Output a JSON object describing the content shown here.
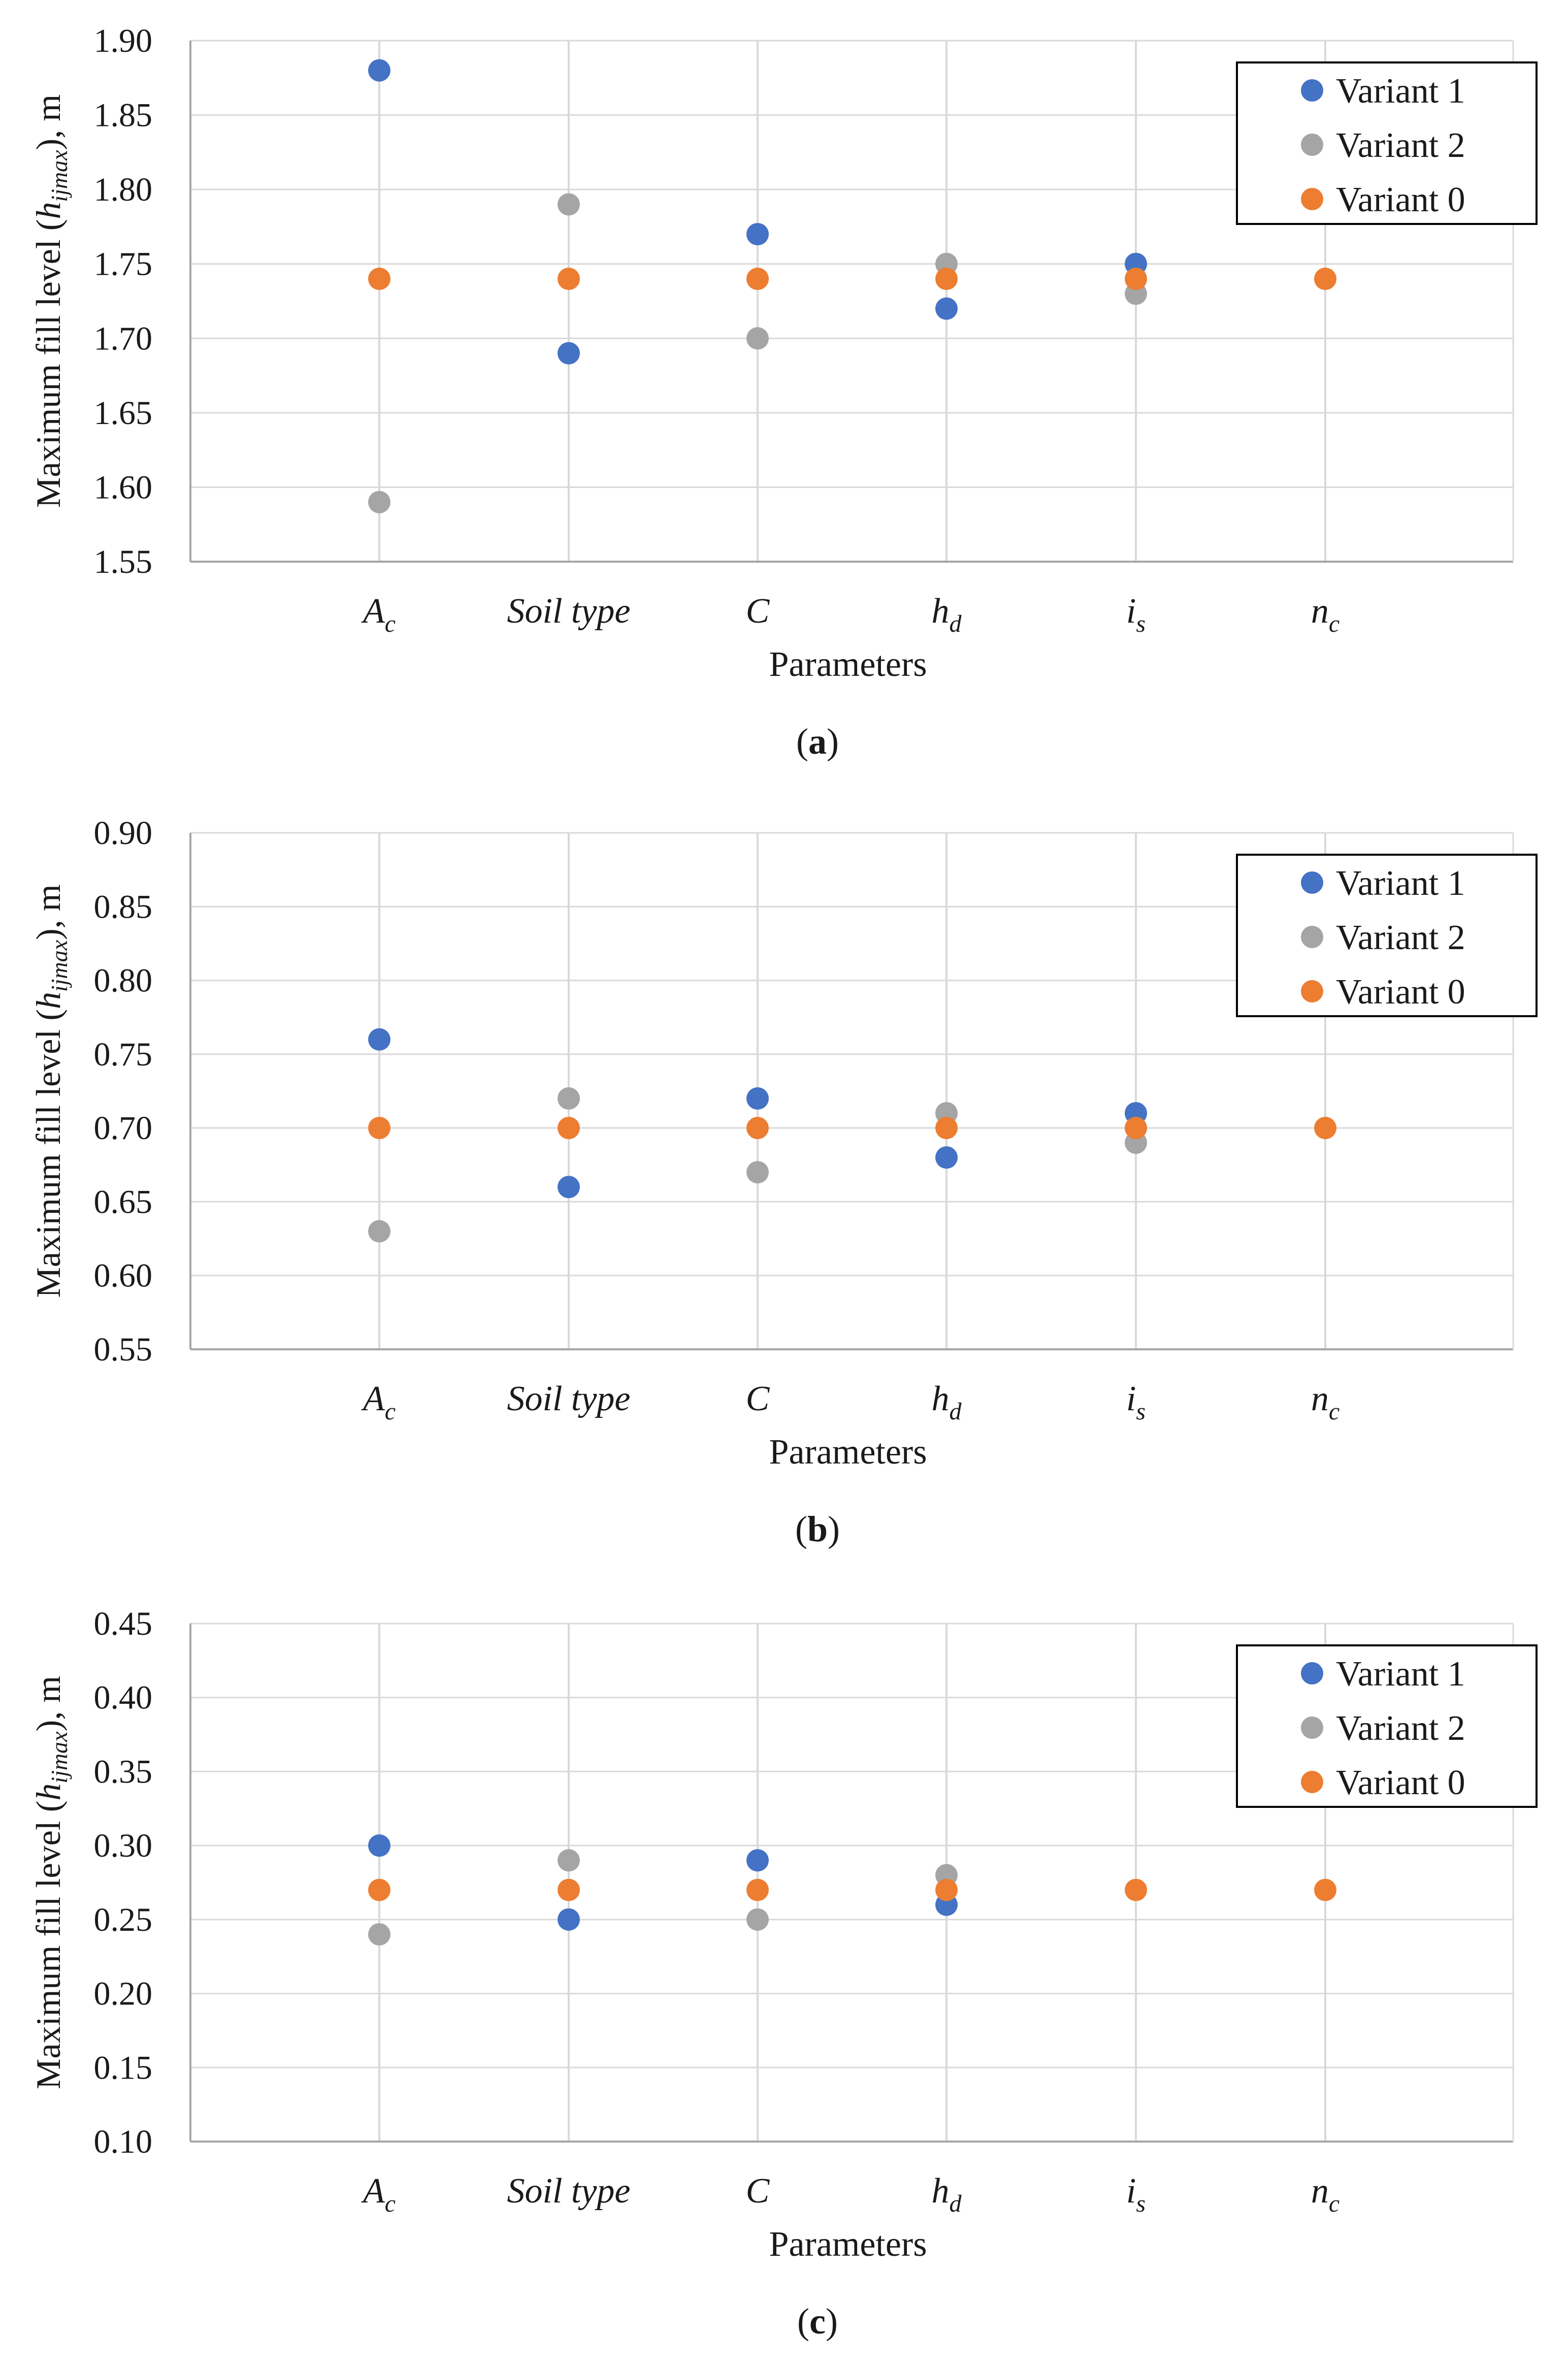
{
  "colors": {
    "variant1": "#4472C4",
    "variant2": "#A5A5A5",
    "variant0": "#ED7D31",
    "grid": "#D9D9D9",
    "axis": "#A6A6A6"
  },
  "chart_data": [
    {
      "type": "scatter",
      "caption_letter": "a",
      "ylabel": {
        "main": "Maximum fill level (",
        "italic": "h",
        "sub": "ijmax",
        "end": "), m"
      },
      "xlabel": "Parameters",
      "categories": [
        {
          "main": "A",
          "sub": "c"
        },
        {
          "main": "Soil type",
          "sub": ""
        },
        {
          "main": "C",
          "sub": ""
        },
        {
          "main": "h",
          "sub": "d"
        },
        {
          "main": "i",
          "sub": "s"
        },
        {
          "main": "n",
          "sub": "c"
        }
      ],
      "ylim": [
        1.55,
        1.9
      ],
      "yticks": [
        "1.55",
        "1.60",
        "1.65",
        "1.70",
        "1.75",
        "1.80",
        "1.85",
        "1.90"
      ],
      "series": [
        {
          "name": "Variant 1",
          "color_key": "variant1",
          "values": [
            1.88,
            1.69,
            1.77,
            1.72,
            1.75,
            null
          ]
        },
        {
          "name": "Variant 2",
          "color_key": "variant2",
          "values": [
            1.59,
            1.79,
            1.7,
            1.75,
            1.73,
            null
          ]
        },
        {
          "name": "Variant 0",
          "color_key": "variant0",
          "values": [
            1.74,
            1.74,
            1.74,
            1.74,
            1.74,
            1.74
          ]
        }
      ],
      "legend": "top-right"
    },
    {
      "type": "scatter",
      "caption_letter": "b",
      "ylabel": {
        "main": "Maximum fill level (",
        "italic": "h",
        "sub": "ijmax",
        "end": "), m"
      },
      "xlabel": "Parameters",
      "categories": [
        {
          "main": "A",
          "sub": "c"
        },
        {
          "main": "Soil type",
          "sub": ""
        },
        {
          "main": "C",
          "sub": ""
        },
        {
          "main": "h",
          "sub": "d"
        },
        {
          "main": "i",
          "sub": "s"
        },
        {
          "main": "n",
          "sub": "c"
        }
      ],
      "ylim": [
        0.55,
        0.9
      ],
      "yticks": [
        "0.55",
        "0.60",
        "0.65",
        "0.70",
        "0.75",
        "0.80",
        "0.85",
        "0.90"
      ],
      "series": [
        {
          "name": "Variant 1",
          "color_key": "variant1",
          "values": [
            0.76,
            0.66,
            0.72,
            0.68,
            0.71,
            null
          ]
        },
        {
          "name": "Variant 2",
          "color_key": "variant2",
          "values": [
            0.63,
            0.72,
            0.67,
            0.71,
            0.69,
            null
          ]
        },
        {
          "name": "Variant 0",
          "color_key": "variant0",
          "values": [
            0.7,
            0.7,
            0.7,
            0.7,
            0.7,
            0.7
          ]
        }
      ],
      "legend": "top-right"
    },
    {
      "type": "scatter",
      "caption_letter": "c",
      "ylabel": {
        "main": "Maximum fill level (",
        "italic": "h",
        "sub": "ijmax",
        "end": "), m"
      },
      "xlabel": "Parameters",
      "categories": [
        {
          "main": "A",
          "sub": "c"
        },
        {
          "main": "Soil type",
          "sub": ""
        },
        {
          "main": "C",
          "sub": ""
        },
        {
          "main": "h",
          "sub": "d"
        },
        {
          "main": "i",
          "sub": "s"
        },
        {
          "main": "n",
          "sub": "c"
        }
      ],
      "ylim": [
        0.1,
        0.45
      ],
      "yticks": [
        "0.10",
        "0.15",
        "0.20",
        "0.25",
        "0.30",
        "0.35",
        "0.40",
        "0.45"
      ],
      "series": [
        {
          "name": "Variant 1",
          "color_key": "variant1",
          "values": [
            0.3,
            0.25,
            0.29,
            0.26,
            null,
            null
          ]
        },
        {
          "name": "Variant 2",
          "color_key": "variant2",
          "values": [
            0.24,
            0.29,
            0.25,
            0.28,
            null,
            null
          ]
        },
        {
          "name": "Variant 0",
          "color_key": "variant0",
          "values": [
            0.27,
            0.27,
            0.27,
            0.27,
            0.27,
            0.27
          ]
        }
      ],
      "legend": "top-right"
    }
  ]
}
